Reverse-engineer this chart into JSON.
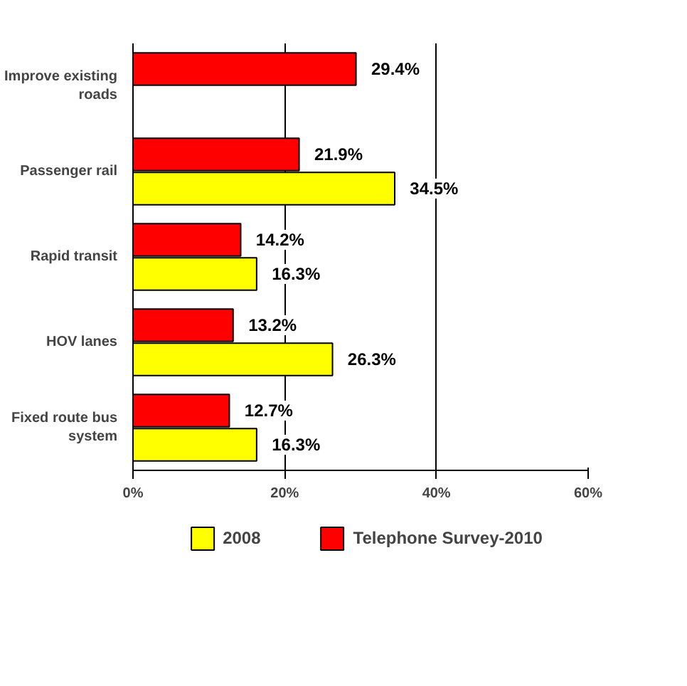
{
  "chart_data": {
    "type": "bar",
    "orientation": "horizontal",
    "categories": [
      "Improve existing roads",
      "Passenger rail",
      "Rapid transit",
      "HOV lanes",
      "Fixed route bus system"
    ],
    "series": [
      {
        "name": "2008",
        "color": "#ffff00",
        "values": [
          null,
          34.5,
          16.3,
          26.3,
          16.3
        ]
      },
      {
        "name": "Telephone Survey-2010",
        "color": "#ff0000",
        "values": [
          29.4,
          21.9,
          14.2,
          13.2,
          12.7
        ]
      }
    ],
    "xlim": [
      0,
      60
    ],
    "xticks": [
      {
        "value": 0,
        "label": "0%"
      },
      {
        "value": 20,
        "label": "20%"
      },
      {
        "value": 40,
        "label": "40%"
      },
      {
        "value": 60,
        "label": "60%"
      }
    ],
    "value_labels": [
      [
        null,
        "34.5%",
        "16.3%",
        "26.3%",
        "16.3%"
      ],
      [
        "29.4%",
        "21.9%",
        "14.2%",
        "13.2%",
        "12.7%"
      ]
    ],
    "grid": "x",
    "legend": "bottom"
  }
}
